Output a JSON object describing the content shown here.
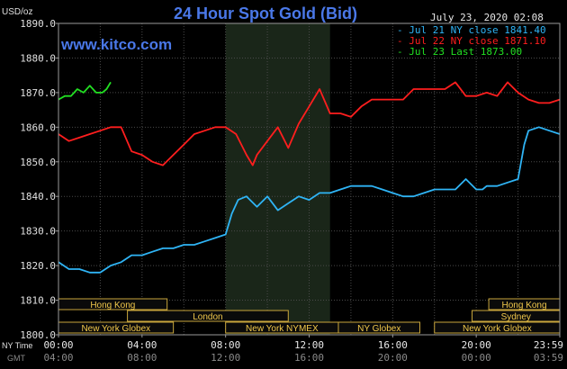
{
  "chart_data": {
    "type": "line",
    "title": "24 Hour Spot Gold (Bid)",
    "website": "www.kitco.com",
    "date_stamp": "July 23, 2020 02:08",
    "yunit": "USD/oz",
    "ylim": [
      1800,
      1890
    ],
    "ytick_labels": [
      "1890.0",
      "1880.0",
      "1870.0",
      "1860.0",
      "1850.0",
      "1840.0",
      "1830.0",
      "1820.0",
      "1810.0",
      "1800.0"
    ],
    "xlim": [
      0,
      24
    ],
    "xtick_labels_ny": [
      "00:00",
      "04:00",
      "08:00",
      "12:00",
      "16:00",
      "20:00",
      "23:59"
    ],
    "xtick_labels_gmt": [
      "04:00",
      "08:00",
      "12:00",
      "16:00",
      "20:00",
      "00:00",
      "03:59"
    ],
    "xrow_label_ny": "NY Time",
    "xrow_label_gmt": "GMT",
    "grid": true,
    "legend_position": "top-right",
    "shaded_range_hours": [
      8,
      13
    ],
    "sessions": [
      {
        "name": "Hong Kong",
        "start": 0,
        "end": 5.2,
        "row": 0
      },
      {
        "name": "London",
        "start": 3.3,
        "end": 11.0,
        "row": 1
      },
      {
        "name": "New York Globex",
        "start": 0,
        "end": 5.5,
        "row": 2
      },
      {
        "name": "New York NYMEX",
        "start": 8.0,
        "end": 13.4,
        "row": 2
      },
      {
        "name": "NY Globex",
        "start": 13.4,
        "end": 17.3,
        "row": 2
      },
      {
        "name": "Hong Kong",
        "start": 20.6,
        "end": 24.0,
        "row": 0
      },
      {
        "name": "Sydney",
        "start": 19.8,
        "end": 24.0,
        "row": 1
      },
      {
        "name": "New York Globex",
        "start": 18.0,
        "end": 24.0,
        "row": 2
      }
    ],
    "series": [
      {
        "name": "Jul 21 NY close 1841.40",
        "color": "#2fb4f5",
        "x": [
          0,
          0.5,
          1,
          1.5,
          2,
          2.5,
          3,
          3.5,
          4,
          4.5,
          5,
          5.5,
          6,
          6.5,
          7,
          7.5,
          8,
          8.3,
          8.6,
          9,
          9.5,
          10,
          10.5,
          11,
          11.5,
          12,
          12.5,
          13,
          13.5,
          14,
          14.5,
          15,
          15.5,
          16,
          16.5,
          17,
          17.5,
          18,
          18.5,
          19,
          19.5,
          20,
          20.3,
          20.5,
          21,
          21.5,
          22,
          22.3,
          22.5,
          23,
          23.5,
          24
        ],
        "values": [
          1821,
          1819,
          1819,
          1818,
          1818,
          1820,
          1821,
          1823,
          1823,
          1824,
          1825,
          1825,
          1826,
          1826,
          1827,
          1828,
          1829,
          1835,
          1839,
          1840,
          1837,
          1840,
          1836,
          1838,
          1840,
          1839,
          1841,
          1841,
          1842,
          1843,
          1843,
          1843,
          1842,
          1841,
          1840,
          1840,
          1841,
          1842,
          1842,
          1842,
          1845,
          1842,
          1842,
          1843,
          1843,
          1844,
          1845,
          1855,
          1859,
          1860,
          1859,
          1858
        ]
      },
      {
        "name": "Jul 22 NY close 1871.10",
        "color": "#ff1e1e",
        "x": [
          0,
          0.5,
          1,
          1.5,
          2,
          2.5,
          3,
          3.5,
          4,
          4.5,
          5,
          5.5,
          6,
          6.5,
          7,
          7.5,
          8,
          8.5,
          9,
          9.3,
          9.5,
          10,
          10.5,
          11,
          11.5,
          12,
          12.5,
          13,
          13.5,
          14,
          14.5,
          15,
          15.5,
          16,
          16.5,
          17,
          17.5,
          18,
          18.5,
          19,
          19.5,
          20,
          20.5,
          21,
          21.5,
          22,
          22.5,
          23,
          23.5,
          24
        ],
        "values": [
          1858,
          1856,
          1857,
          1858,
          1859,
          1860,
          1860,
          1853,
          1852,
          1850,
          1849,
          1852,
          1855,
          1858,
          1859,
          1860,
          1860,
          1858,
          1852,
          1849,
          1852,
          1856,
          1860,
          1854,
          1861,
          1866,
          1871,
          1864,
          1864,
          1863,
          1866,
          1868,
          1868,
          1868,
          1868,
          1871,
          1871,
          1871,
          1871,
          1873,
          1869,
          1869,
          1870,
          1869,
          1873,
          1870,
          1868,
          1867,
          1867,
          1868
        ]
      },
      {
        "name": "Jul 23 Last 1873.00",
        "color": "#22e022",
        "x": [
          0,
          0.3,
          0.6,
          0.9,
          1.2,
          1.5,
          1.8,
          2.1,
          2.3,
          2.5
        ],
        "values": [
          1868,
          1869,
          1869,
          1871,
          1870,
          1872,
          1870,
          1870,
          1871,
          1873
        ]
      }
    ]
  }
}
